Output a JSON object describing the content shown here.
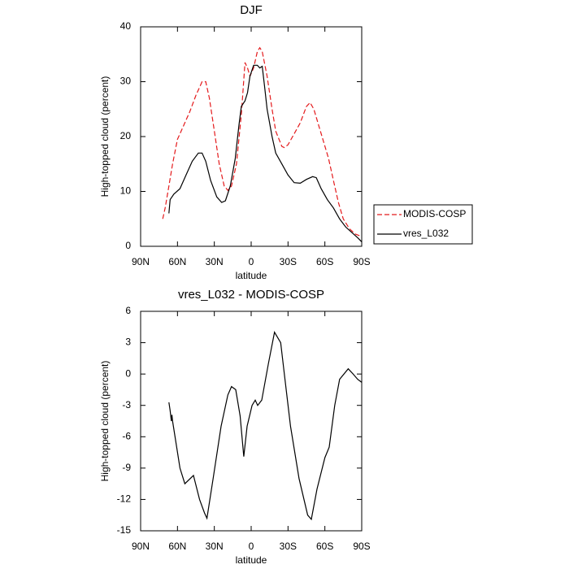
{
  "chart_data": [
    {
      "type": "line",
      "title": "DJF",
      "xlabel": "latitude",
      "ylabel": "High-topped cloud (percent)",
      "xlim": [
        90,
        -90
      ],
      "xticks": [
        {
          "value": 90,
          "label": "90N"
        },
        {
          "value": 60,
          "label": "60N"
        },
        {
          "value": 30,
          "label": "30N"
        },
        0,
        {
          "value": -30,
          "label": "30S"
        },
        {
          "value": -60,
          "label": "60S"
        },
        {
          "value": -90,
          "label": "90S"
        }
      ],
      "ylim": [
        0,
        40
      ],
      "yticks": [
        0,
        10,
        20,
        30,
        40
      ],
      "legend": "right",
      "series": [
        {
          "name": "MODIS-COSP",
          "color": "#e41a1c",
          "dashed": true,
          "x": [
            72,
            70,
            67,
            64,
            60,
            55,
            50,
            45,
            40,
            37,
            34,
            30,
            26,
            22,
            19,
            16,
            12,
            8,
            5,
            3,
            1,
            -2,
            -5,
            -7,
            -9,
            -13,
            -17,
            -20,
            -25,
            -27,
            -30,
            -35,
            -40,
            -45,
            -48,
            -51,
            -55,
            -59,
            -63,
            -67,
            -71,
            -75,
            -80,
            -85,
            -90
          ],
          "values": [
            5,
            7,
            11,
            15,
            19.5,
            22,
            24.5,
            27.5,
            30,
            30,
            27,
            21,
            15,
            11,
            10.2,
            11,
            15,
            24,
            33.5,
            32.5,
            31,
            32.5,
            35.5,
            36.2,
            35.5,
            31,
            25,
            21,
            18.2,
            18,
            18.5,
            20.5,
            22.5,
            25.5,
            26.2,
            25,
            22,
            19,
            16,
            12,
            8,
            5,
            3.2,
            2.2,
            1.8
          ]
        },
        {
          "name": "vres_L032",
          "color": "#000000",
          "dashed": false,
          "x": [
            67,
            66,
            63,
            58,
            53,
            48,
            43,
            40,
            37,
            33,
            28,
            24,
            21,
            17,
            13,
            10,
            8,
            5,
            3,
            1,
            -2,
            -5,
            -7,
            -9,
            -11,
            -13,
            -17,
            -20,
            -25,
            -30,
            -35,
            -40,
            -45,
            -50,
            -53,
            -57,
            -62,
            -67,
            -72,
            -77,
            -82,
            -87,
            -90
          ],
          "values": [
            6,
            8.5,
            9.5,
            10.5,
            13,
            15.5,
            17,
            17,
            15.5,
            12,
            9,
            8,
            8.3,
            11,
            16,
            22,
            25.5,
            26.5,
            28,
            31,
            33,
            33,
            32.5,
            32.8,
            29,
            25,
            20,
            17,
            15,
            13,
            11.6,
            11.5,
            12.2,
            12.7,
            12.5,
            10.5,
            8.5,
            7,
            5,
            3.5,
            2.5,
            1.5,
            0.8
          ]
        }
      ]
    },
    {
      "type": "line",
      "title": "vres_L032 - MODIS-COSP",
      "xlabel": "latitude",
      "ylabel": "High-topped cloud (percent)",
      "xlim": [
        90,
        -90
      ],
      "xticks": [
        {
          "value": 90,
          "label": "90N"
        },
        {
          "value": 60,
          "label": "60N"
        },
        {
          "value": 30,
          "label": "30N"
        },
        0,
        {
          "value": -30,
          "label": "30S"
        },
        {
          "value": -60,
          "label": "60S"
        },
        {
          "value": -90,
          "label": "90S"
        }
      ],
      "ylim": [
        -15,
        6
      ],
      "yticks": [
        -15,
        -12,
        -9,
        -6,
        -3,
        0,
        3,
        6
      ],
      "series": [
        {
          "color": "#000000",
          "dashed": false,
          "x": [
            67,
            66,
            65,
            64.5,
            64,
            58,
            54,
            47,
            42,
            38,
            36,
            31,
            24.5,
            19,
            16,
            12.6,
            9,
            6,
            3.3,
            -0.7,
            -3.3,
            -5.3,
            -8.6,
            -14,
            -19,
            -24,
            -27,
            -32,
            -39,
            -46,
            -49,
            -53.6,
            -60,
            -63.5,
            -68,
            -72,
            -79,
            -83,
            -86.7,
            -90
          ],
          "values": [
            -2.7,
            -3.5,
            -4.5,
            -3.9,
            -4.5,
            -9,
            -10.5,
            -9.7,
            -12,
            -13.3,
            -13.8,
            -10,
            -5,
            -2,
            -1.2,
            -1.5,
            -4,
            -7.9,
            -5,
            -3,
            -2.5,
            -3,
            -2.5,
            1,
            4,
            3,
            0,
            -5,
            -10,
            -13.5,
            -13.9,
            -11,
            -8,
            -7,
            -3,
            -0.5,
            0.5,
            0,
            -0.5,
            -0.8
          ]
        }
      ]
    }
  ]
}
